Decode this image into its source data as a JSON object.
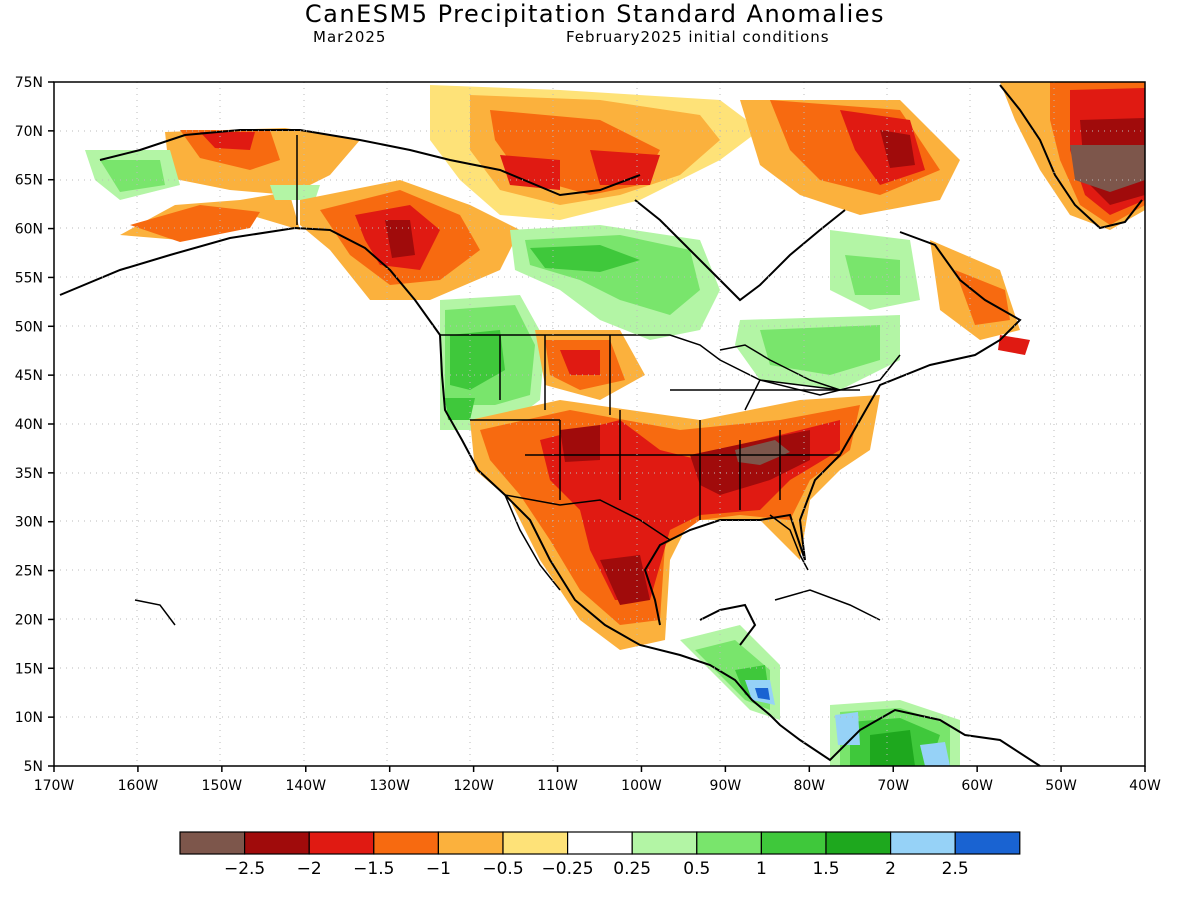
{
  "header": {
    "title": "CanESM5 Precipitation Standard Anomalies",
    "target_month": "Mar2025",
    "initial_conditions": "February2025 initial conditions"
  },
  "map": {
    "lon_ticks": [
      "170W",
      "160W",
      "150W",
      "140W",
      "130W",
      "120W",
      "110W",
      "100W",
      "90W",
      "80W",
      "70W",
      "60W",
      "50W",
      "40W"
    ],
    "lat_ticks": [
      "75N",
      "70N",
      "65N",
      "60N",
      "55N",
      "50N",
      "45N",
      "40N",
      "35N",
      "30N",
      "25N",
      "20N",
      "15N",
      "10N",
      "5N"
    ]
  },
  "colorbar": {
    "colors": [
      "#7d564b",
      "#a00b0b",
      "#e01a12",
      "#f76a10",
      "#fbb13d",
      "#fee278",
      "#ffffff",
      "#b3f5a5",
      "#79e56c",
      "#3fc83b",
      "#1ea81e",
      "#96d2f7",
      "#1963d2"
    ],
    "labels": [
      "−2.5",
      "−2",
      "−1.5",
      "−1",
      "−0.5",
      "−0.25",
      "0.25",
      "0.5",
      "1",
      "1.5",
      "2",
      "2.5"
    ]
  },
  "anomaly_regions": [
    {
      "name": "southern-plains-deficit",
      "level": "-2"
    },
    {
      "name": "tennessee-valley-deficit",
      "level": "-2.5"
    },
    {
      "name": "greenland-deficit",
      "level": "-2.5"
    },
    {
      "name": "pacific-northwest-wet",
      "level": "1"
    },
    {
      "name": "central-canada-wet",
      "level": "1"
    },
    {
      "name": "colombia-wet",
      "level": "2"
    }
  ]
}
